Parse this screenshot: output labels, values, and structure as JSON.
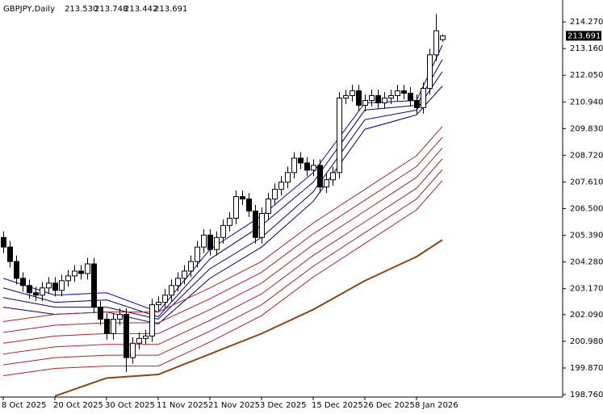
{
  "chart_data": {
    "type": "candlestick",
    "title": "GBPJPY,Daily",
    "ohlc_labels": [
      "213.530",
      "213.748",
      "213.442",
      "213.691"
    ],
    "last_price": {
      "value": 213.691,
      "label": "213.691"
    },
    "categories": [
      "8 Oct 2025",
      null,
      null,
      null,
      null,
      null,
      null,
      null,
      "20 Oct 2025",
      null,
      null,
      null,
      null,
      null,
      null,
      null,
      "30 Oct 2025",
      null,
      null,
      null,
      null,
      null,
      null,
      null,
      "11 Nov 2025",
      null,
      null,
      null,
      null,
      null,
      null,
      null,
      "21 Nov 2025",
      null,
      null,
      null,
      null,
      null,
      null,
      null,
      "3 Dec 2025",
      null,
      null,
      null,
      null,
      null,
      null,
      null,
      "15 Dec 2025",
      null,
      null,
      null,
      null,
      null,
      null,
      null,
      "26 Dec 2025",
      null,
      null,
      null,
      null,
      null,
      null,
      null,
      "8 Jan 2026",
      null,
      null,
      null,
      null
    ],
    "open": [
      205.3,
      204.9,
      204.3,
      203.6,
      203.3,
      203.0,
      202.9,
      203.2,
      203.4,
      203.1,
      203.5,
      203.7,
      203.9,
      203.8,
      204.2,
      202.4,
      201.9,
      201.3,
      201.9,
      202.1,
      200.3,
      200.9,
      201.1,
      201.2,
      202.5,
      202.6,
      202.9,
      203.3,
      203.6,
      203.9,
      204.3,
      204.9,
      205.4,
      204.8,
      205.3,
      205.8,
      206.1,
      207.0,
      206.9,
      206.4,
      205.3,
      206.3,
      206.9,
      207.3,
      207.6,
      208.0,
      208.6,
      208.4,
      208.1,
      208.3,
      207.4,
      207.7,
      208.0,
      211.1,
      211.2,
      211.4,
      210.8,
      211.0,
      211.2,
      210.9,
      211.1,
      211.2,
      211.4,
      211.3,
      211.0,
      210.7,
      211.5,
      212.9,
      213.53
    ],
    "high": [
      205.55,
      205.15,
      204.55,
      203.85,
      203.55,
      203.25,
      203.45,
      203.65,
      203.65,
      203.75,
      203.95,
      204.15,
      204.15,
      204.45,
      204.45,
      202.65,
      202.15,
      202.15,
      202.35,
      202.35,
      201.15,
      201.35,
      201.45,
      202.75,
      202.85,
      203.15,
      203.55,
      203.85,
      204.15,
      204.55,
      205.15,
      205.65,
      205.65,
      205.55,
      206.05,
      206.35,
      207.25,
      207.25,
      207.15,
      206.65,
      206.55,
      207.15,
      207.55,
      207.85,
      208.25,
      208.85,
      208.85,
      208.65,
      208.55,
      208.55,
      207.95,
      208.25,
      211.35,
      211.45,
      211.65,
      211.65,
      211.25,
      211.45,
      211.45,
      211.35,
      211.45,
      211.65,
      211.65,
      211.55,
      211.25,
      211.75,
      213.15,
      214.6,
      213.748
    ],
    "low": [
      204.65,
      204.05,
      203.35,
      203.05,
      202.75,
      202.65,
      202.65,
      202.95,
      202.85,
      202.85,
      203.25,
      203.45,
      203.55,
      203.55,
      202.15,
      201.65,
      201.05,
      201.05,
      201.65,
      199.7,
      200.05,
      200.65,
      200.85,
      200.95,
      202.25,
      202.35,
      202.65,
      203.05,
      203.35,
      203.65,
      204.05,
      204.65,
      204.55,
      204.55,
      205.05,
      205.55,
      205.85,
      206.65,
      206.15,
      205.05,
      205.05,
      206.05,
      206.65,
      207.05,
      207.35,
      207.75,
      208.15,
      207.85,
      207.85,
      207.15,
      207.15,
      207.45,
      207.75,
      210.85,
      210.95,
      210.55,
      210.55,
      210.75,
      210.65,
      210.65,
      210.85,
      210.95,
      211.05,
      210.75,
      210.45,
      210.45,
      211.25,
      212.65,
      213.442
    ],
    "close": [
      204.9,
      204.3,
      203.6,
      203.3,
      203.0,
      202.9,
      203.2,
      203.4,
      203.1,
      203.5,
      203.7,
      203.9,
      203.8,
      204.2,
      202.4,
      201.9,
      201.3,
      201.9,
      202.1,
      200.3,
      200.9,
      201.1,
      201.2,
      202.5,
      202.6,
      202.9,
      203.3,
      203.6,
      203.9,
      204.3,
      204.9,
      205.4,
      204.8,
      205.3,
      205.8,
      206.1,
      207.0,
      206.9,
      206.4,
      205.3,
      206.3,
      206.9,
      207.3,
      207.6,
      208.0,
      208.6,
      208.4,
      208.1,
      208.3,
      207.4,
      207.7,
      208.0,
      211.1,
      211.2,
      211.4,
      210.8,
      211.0,
      211.2,
      210.9,
      211.1,
      211.2,
      211.4,
      211.3,
      211.0,
      210.7,
      211.5,
      212.9,
      213.9,
      213.691
    ],
    "bull_color": "#ffffff",
    "bear_color": "#000000",
    "ma_x": [
      0,
      8,
      16,
      24,
      32,
      40,
      48,
      56,
      64,
      68
    ],
    "lines": [
      {
        "color": "#0000ff",
        "values": [
          203.6,
          202.9,
          203.0,
          202.2,
          204.8,
          206.2,
          208.0,
          210.9,
          211.0,
          213.3
        ]
      },
      {
        "color": "#000080",
        "values": [
          203.2,
          202.6,
          202.7,
          202.0,
          204.4,
          205.8,
          207.6,
          210.6,
          210.8,
          212.7
        ]
      },
      {
        "color": "#000080",
        "values": [
          202.8,
          202.4,
          202.4,
          201.9,
          204.0,
          205.3,
          207.2,
          210.2,
          210.6,
          212.2
        ]
      },
      {
        "color": "#000080",
        "values": [
          202.4,
          202.1,
          202.2,
          201.7,
          203.6,
          204.9,
          206.8,
          209.8,
          210.4,
          211.6
        ]
      },
      {
        "color": "#b22222",
        "values": [
          201.8,
          202.1,
          202.2,
          202.2,
          203.2,
          204.3,
          205.9,
          207.3,
          208.7,
          209.92
        ]
      },
      {
        "color": "#b22222",
        "values": [
          201.35,
          201.65,
          201.75,
          201.75,
          202.75,
          203.85,
          205.45,
          206.85,
          208.25,
          209.47
        ]
      },
      {
        "color": "#b22222",
        "values": [
          200.9,
          201.2,
          201.3,
          201.3,
          202.3,
          203.4,
          205.0,
          206.4,
          207.8,
          209.02
        ]
      },
      {
        "color": "#b22222",
        "values": [
          200.45,
          200.75,
          200.85,
          200.85,
          201.85,
          202.95,
          204.55,
          205.95,
          207.35,
          208.57
        ]
      },
      {
        "color": "#b22222",
        "values": [
          200.0,
          200.3,
          200.4,
          200.4,
          201.4,
          202.5,
          204.1,
          205.5,
          206.9,
          208.12
        ]
      },
      {
        "color": "#b22222",
        "values": [
          199.55,
          199.85,
          199.95,
          199.95,
          200.95,
          202.05,
          203.65,
          205.05,
          206.45,
          207.67
        ]
      },
      {
        "color": "#8b4513",
        "width": 2,
        "values": [
          null,
          198.7,
          199.45,
          199.6,
          200.45,
          201.3,
          202.3,
          203.5,
          204.5,
          205.2
        ]
      }
    ],
    "ylim": [
      198.66,
      215.18
    ],
    "yticks": [
      {
        "value": 214.27,
        "label": "214.270"
      },
      {
        "value": 213.16,
        "label": "213.160"
      },
      {
        "value": 212.05,
        "label": "212.050"
      },
      {
        "value": 210.94,
        "label": "210.940"
      },
      {
        "value": 209.83,
        "label": "209.830"
      },
      {
        "value": 208.72,
        "label": "208.720"
      },
      {
        "value": 207.61,
        "label": "207.610"
      },
      {
        "value": 206.5,
        "label": "206.500"
      },
      {
        "value": 205.39,
        "label": "205.390"
      },
      {
        "value": 204.28,
        "label": "204.280"
      },
      {
        "value": 203.17,
        "label": "203.170"
      },
      {
        "value": 202.09,
        "label": "202.090"
      },
      {
        "value": 200.98,
        "label": "200.980"
      },
      {
        "value": 199.87,
        "label": "199.870"
      },
      {
        "value": 198.76,
        "label": "198.760"
      }
    ]
  }
}
